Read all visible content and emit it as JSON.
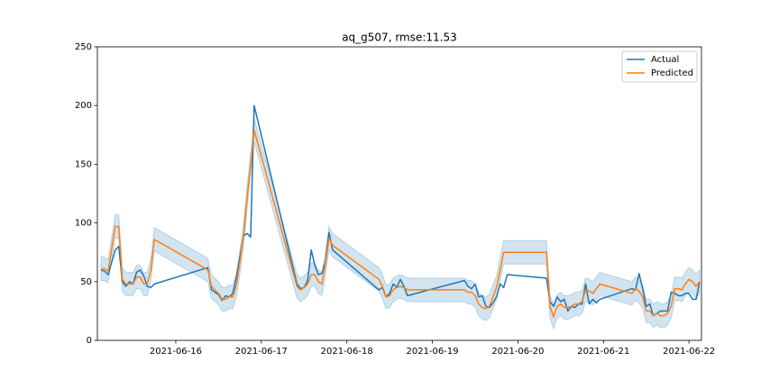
{
  "chart_data": {
    "type": "line",
    "title": "aq_g507, rmse:11.53",
    "x": [
      "2021-06-15T03:00",
      "2021-06-15T04:00",
      "2021-06-15T05:00",
      "2021-06-15T07:00",
      "2021-06-15T08:00",
      "2021-06-15T09:00",
      "2021-06-15T10:00",
      "2021-06-15T11:00",
      "2021-06-15T12:00",
      "2021-06-15T13:00",
      "2021-06-15T14:00",
      "2021-06-15T15:00",
      "2021-06-15T16:00",
      "2021-06-15T17:00",
      "2021-06-15T18:00",
      "2021-06-16T09:00",
      "2021-06-16T10:00",
      "2021-06-16T12:00",
      "2021-06-16T13:00",
      "2021-06-16T14:00",
      "2021-06-16T15:00",
      "2021-06-16T16:00",
      "2021-06-16T17:00",
      "2021-06-16T18:00",
      "2021-06-16T19:00",
      "2021-06-16T20:00",
      "2021-06-16T21:00",
      "2021-06-16T22:00",
      "2021-06-17T10:00",
      "2021-06-17T11:00",
      "2021-06-17T12:00",
      "2021-06-17T13:00",
      "2021-06-17T14:00",
      "2021-06-17T15:00",
      "2021-06-17T16:00",
      "2021-06-17T17:00",
      "2021-06-17T18:00",
      "2021-06-17T19:00",
      "2021-06-17T20:00",
      "2021-06-18T09:00",
      "2021-06-18T10:00",
      "2021-06-18T11:00",
      "2021-06-18T12:00",
      "2021-06-18T13:00",
      "2021-06-18T14:00",
      "2021-06-18T15:00",
      "2021-06-18T16:00",
      "2021-06-18T17:00",
      "2021-06-19T09:00",
      "2021-06-19T10:00",
      "2021-06-19T11:00",
      "2021-06-19T12:00",
      "2021-06-19T13:00",
      "2021-06-19T14:00",
      "2021-06-19T15:00",
      "2021-06-19T16:00",
      "2021-06-19T17:00",
      "2021-06-19T18:00",
      "2021-06-19T19:00",
      "2021-06-19T20:00",
      "2021-06-19T21:00",
      "2021-06-20T08:00",
      "2021-06-20T09:00",
      "2021-06-20T10:00",
      "2021-06-20T11:00",
      "2021-06-20T12:00",
      "2021-06-20T13:00",
      "2021-06-20T14:00",
      "2021-06-20T15:00",
      "2021-06-20T16:00",
      "2021-06-20T17:00",
      "2021-06-20T18:00",
      "2021-06-20T19:00",
      "2021-06-20T20:00",
      "2021-06-20T21:00",
      "2021-06-20T22:00",
      "2021-06-20T23:00",
      "2021-06-21T08:00",
      "2021-06-21T09:00",
      "2021-06-21T10:00",
      "2021-06-21T11:00",
      "2021-06-21T12:00",
      "2021-06-21T13:00",
      "2021-06-21T14:00",
      "2021-06-21T15:00",
      "2021-06-21T16:00",
      "2021-06-21T17:00",
      "2021-06-21T18:00",
      "2021-06-21T19:00",
      "2021-06-21T20:00",
      "2021-06-21T21:00",
      "2021-06-21T22:00",
      "2021-06-21T23:00",
      "2021-06-22T00:00",
      "2021-06-22T01:00",
      "2021-06-22T02:00",
      "2021-06-22T03:00"
    ],
    "series": [
      {
        "name": "Actual",
        "color": "#1f77b4",
        "values": [
          60,
          59,
          56,
          77,
          80,
          50,
          46,
          50,
          48,
          58,
          60,
          55,
          46,
          45,
          48,
          62,
          43,
          39,
          34,
          38,
          37,
          40,
          54,
          71,
          89,
          91,
          88,
          200,
          48,
          44,
          45,
          51,
          77,
          64,
          56,
          57,
          67,
          92,
          77,
          43,
          45,
          37,
          40,
          48,
          45,
          52,
          46,
          38,
          51,
          46,
          44,
          48,
          37,
          38,
          29,
          28,
          32,
          37,
          48,
          45,
          56,
          53,
          33,
          29,
          37,
          33,
          35,
          25,
          29,
          28,
          31,
          31,
          48,
          31,
          35,
          32,
          35,
          44,
          43,
          57,
          44,
          29,
          31,
          21,
          23,
          25,
          25,
          25,
          41,
          40,
          38,
          38,
          40,
          40,
          35,
          35,
          50
        ]
      },
      {
        "name": "Predicted",
        "color": "#ff7f0e",
        "error": 10,
        "values": [
          61,
          61,
          59,
          97,
          97,
          52,
          48,
          48,
          48,
          54,
          54,
          48,
          48,
          60,
          86,
          60,
          46,
          40,
          35,
          35,
          37,
          37,
          47,
          67,
          89,
          121,
          150,
          179,
          46,
          43,
          45,
          48,
          56,
          56,
          50,
          48,
          65,
          87,
          81,
          52,
          46,
          37,
          38,
          43,
          45,
          46,
          45,
          43,
          43,
          41,
          41,
          38,
          31,
          28,
          27,
          29,
          37,
          45,
          60,
          75,
          75,
          75,
          29,
          20,
          29,
          31,
          28,
          28,
          29,
          31,
          31,
          33,
          43,
          42,
          40,
          44,
          48,
          40,
          44,
          42,
          37,
          25,
          25,
          21,
          23,
          21,
          21,
          23,
          29,
          44,
          44,
          43,
          48,
          52,
          50,
          46,
          50
        ]
      }
    ],
    "xlim": [
      "2021-06-15T02:00",
      "2021-06-22T03:30"
    ],
    "xticks": [
      "2021-06-16",
      "2021-06-17",
      "2021-06-18",
      "2021-06-19",
      "2021-06-20",
      "2021-06-21",
      "2021-06-22"
    ],
    "ylim": [
      0,
      250
    ],
    "yticks": [
      0,
      50,
      100,
      150,
      200,
      250
    ],
    "legend": "upper right",
    "band_color": "#1f77b4"
  }
}
